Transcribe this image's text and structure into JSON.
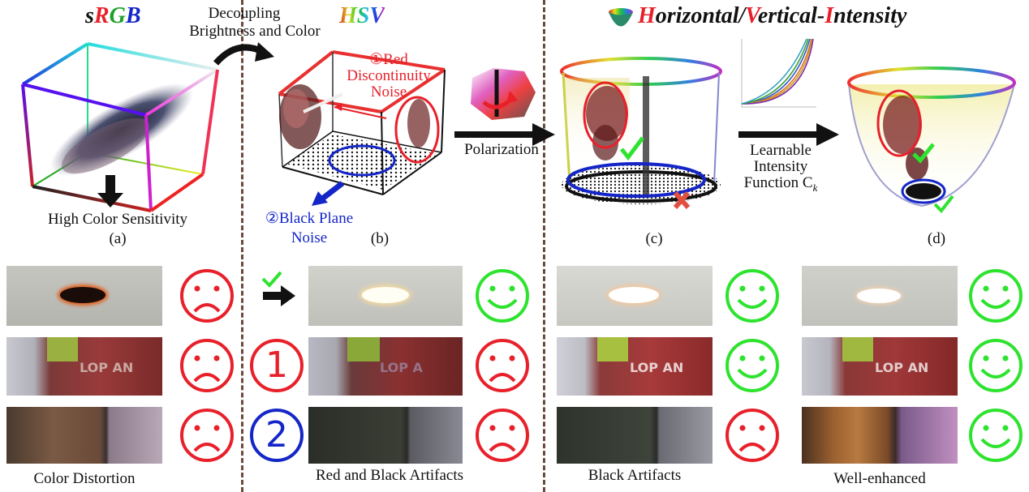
{
  "titles": {
    "srgb": {
      "s": "s",
      "r": "R",
      "g": "G",
      "b": "B"
    },
    "hsv": "HSV",
    "hvi": {
      "h": "H",
      "h_rest": "orizontal/",
      "v": "V",
      "v_rest": "ertical-",
      "i": "I",
      "i_rest": "ntensity"
    }
  },
  "arrows": {
    "decoupling_line1": "Decoupling",
    "decoupling_line2": "Brightness and Color",
    "polarization": "Polarization",
    "learnable_line1": "Learnable",
    "learnable_line2": "Intensity",
    "learnable_line3": "Function C",
    "learnable_sub": "k"
  },
  "panel_a": {
    "caption": "High Color Sensitivity",
    "letter": "(a)"
  },
  "panel_b": {
    "letter": "(b)",
    "red_note_line1": "①Red",
    "red_note_line2": "Discontinuity",
    "red_note_line3": "Noise",
    "blue_note_line1": "②Black Plane",
    "blue_note_line2": "Noise"
  },
  "panel_c": {
    "letter": "(c)"
  },
  "panel_d": {
    "letter": "(d)"
  },
  "markers": {
    "one": "1",
    "two": "2"
  },
  "bottom_captions": {
    "col1": "Color Distortion",
    "col2": "Red and Black Artifacts",
    "col3": "Black Artifacts",
    "col4": "Well-enhanced"
  },
  "colors": {
    "sad": "#e8202a",
    "happy": "#2ee32e",
    "blue": "#1426c8",
    "divider": "#6b4a3e"
  }
}
